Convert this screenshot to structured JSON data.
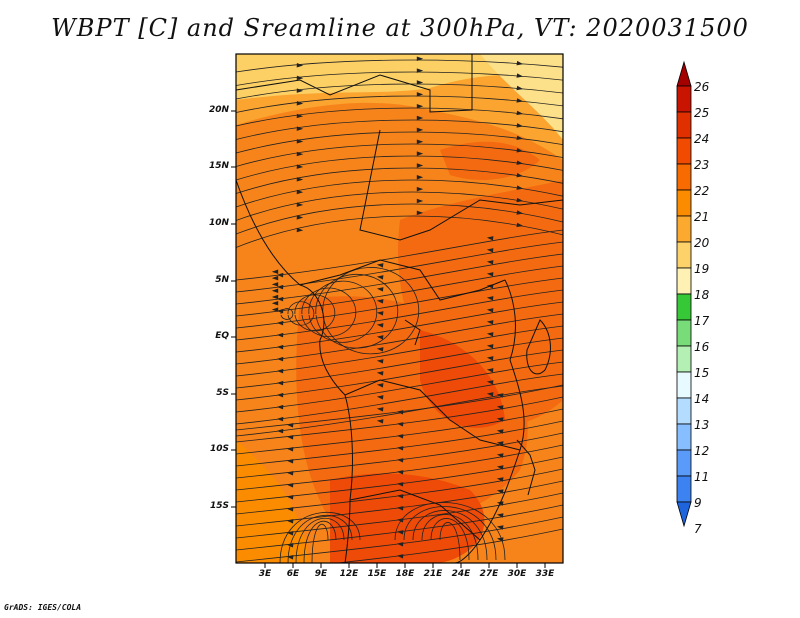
{
  "title": "WBPT [C] and Sreamline at 300hPa, VT: 2020031500",
  "credit": "GrADS: IGES/COLA",
  "map": {
    "lat_labels": [
      "20N",
      "15N",
      "10N",
      "5N",
      "EQ",
      "5S",
      "10S",
      "15S"
    ],
    "lon_labels": [
      "3E",
      "6E",
      "9E",
      "12E",
      "15E",
      "18E",
      "21E",
      "24E",
      "27E",
      "30E",
      "33E"
    ]
  },
  "colorbar": {
    "labels": [
      "26",
      "25",
      "24",
      "23",
      "22",
      "21",
      "20",
      "19",
      "18",
      "17",
      "16",
      "15",
      "14",
      "13",
      "12",
      "11",
      "9",
      "7"
    ],
    "colors": [
      "#a50000",
      "#c81400",
      "#e03000",
      "#f04b00",
      "#f76b00",
      "#fb8c00",
      "#fca930",
      "#fdd26a",
      "#fff0b4",
      "#37c837",
      "#78dc78",
      "#b4f0b4",
      "#e6faff",
      "#b4dcff",
      "#87beff",
      "#5a9bfa",
      "#3c82f0",
      "#1e64dc"
    ]
  },
  "field_colors": {
    "n_yellow": "#fcd064",
    "orange_light": "#fba430",
    "orange": "#f7841a",
    "orange_dark": "#f46a10",
    "red_orange": "#ee4a08"
  }
}
